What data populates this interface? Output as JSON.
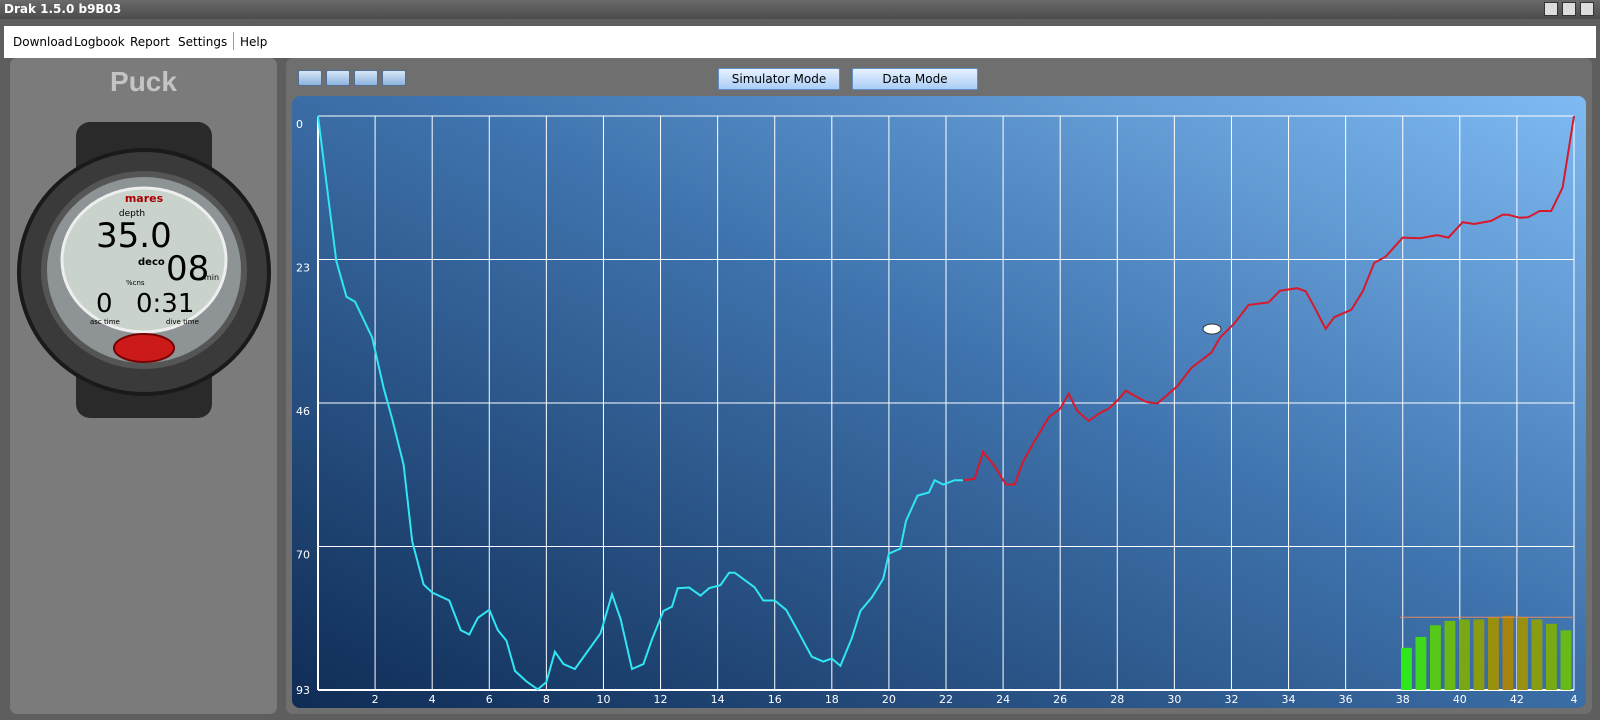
{
  "window": {
    "title": "Drak 1.5.0 b9B03"
  },
  "menu": [
    "Download",
    "Logbook",
    "Report",
    "Settings",
    "Help"
  ],
  "device": {
    "name": "Puck",
    "display": {
      "brand": "mares",
      "depth_label": "depth",
      "depth": "35.0",
      "deco_label": "deco",
      "deco": "08",
      "deco_unit": "min",
      "cns_label": "%cns",
      "asc_time": "0",
      "dive_time": "0:31",
      "asc_time_label": "asc time",
      "dive_time_label": "dive time"
    }
  },
  "toolbar": {
    "modes": [
      "Simulator Mode",
      "Data Mode"
    ]
  },
  "chart_data": [
    {
      "type": "line",
      "grid": true,
      "y_inverted": true,
      "xlim": [
        0,
        44
      ],
      "xticks": [
        2,
        4,
        6,
        8,
        10,
        12,
        14,
        16,
        18,
        20,
        22,
        24,
        26,
        28,
        30,
        32,
        34,
        36,
        38,
        40,
        42,
        {
          "value": 44,
          "label": "4"
        }
      ],
      "ylim": [
        0,
        93
      ],
      "yticks": [
        0,
        {
          "value": 23.25,
          "label": "23"
        },
        {
          "value": 46.5,
          "label": "46"
        },
        {
          "value": 69.75,
          "label": "70"
        },
        93
      ],
      "series": [
        {
          "color": "#2fe6f2",
          "x": [
            0,
            0.64,
            1.0,
            1.3,
            1.9,
            2.3,
            2.6,
            3.0,
            3.3,
            3.7,
            4.0,
            4.6,
            5.0,
            5.3,
            5.6,
            6.0,
            6.3,
            6.6,
            6.9,
            7.3,
            7.7,
            8.0,
            8.3,
            8.6,
            9.0,
            9.9,
            10.3,
            10.6,
            11.0,
            11.4,
            11.7,
            12.1,
            12.4,
            12.6,
            13.0,
            13.4,
            13.7,
            14.1,
            14.4,
            14.6,
            15.3,
            15.6,
            16.0,
            16.4,
            16.7,
            17.3,
            17.7,
            18.0,
            18.3,
            18.7,
            19.0,
            19.4,
            19.8,
            20.0,
            20.4,
            20.6,
            21.0,
            21.4,
            21.6,
            21.9,
            22.3,
            22.6
          ],
          "values": [
            0,
            23.5,
            29.3,
            30.1,
            35.9,
            44.1,
            49.1,
            56.5,
            68.9,
            75.9,
            77.2,
            78.5,
            83.3,
            84.0,
            81.3,
            80.0,
            83.3,
            85.0,
            89.9,
            91.6,
            92.9,
            91.7,
            86.8,
            88.8,
            89.6,
            83.8,
            77.5,
            81.5,
            89.6,
            88.8,
            84.8,
            80.2,
            79.5,
            76.5,
            76.4,
            77.7,
            76.5,
            76.0,
            74.0,
            74.0,
            76.4,
            78.5,
            78.5,
            80.0,
            82.5,
            87.6,
            88.4,
            87.9,
            89.1,
            84.6,
            80.2,
            78.0,
            75.0,
            70.9,
            70.1,
            65.6,
            61.5,
            61.0,
            59.0,
            59.7,
            59.0,
            59.0
          ]
        },
        {
          "color": "#d8182c",
          "x": [
            22.6,
            23.0,
            23.3,
            23.7,
            24.1,
            24.4,
            24.7,
            25.1,
            25.6,
            26.0,
            26.3,
            26.6,
            27.0,
            27.4,
            27.7,
            28.0,
            28.3,
            28.6,
            29.0,
            29.4,
            30.1,
            30.6,
            31.3,
            31.6,
            32.1,
            32.6,
            33.3,
            33.7,
            34.3,
            34.6,
            34.9,
            35.3,
            35.6,
            36.2,
            36.6,
            37.0,
            37.4,
            38.0,
            38.6,
            39.2,
            39.6,
            40.1,
            40.5,
            41.1,
            41.5,
            41.7,
            42.1,
            42.4,
            42.8,
            43.2,
            43.6,
            44.0
          ],
          "values": [
            59.0,
            58.8,
            54.4,
            56.7,
            59.7,
            59.7,
            56.0,
            52.7,
            48.8,
            47.4,
            45.0,
            47.8,
            49.4,
            48.1,
            47.4,
            46.1,
            44.5,
            45.3,
            46.3,
            46.6,
            43.8,
            40.8,
            38.3,
            35.9,
            33.6,
            30.6,
            30.2,
            28.3,
            27.9,
            28.4,
            30.9,
            34.5,
            32.6,
            31.4,
            28.4,
            23.8,
            22.8,
            19.7,
            19.8,
            19.3,
            19.7,
            17.2,
            17.5,
            17.0,
            16.0,
            16.0,
            16.5,
            16.4,
            15.4,
            15.4,
            11.6,
            0
          ]
        }
      ]
    },
    {
      "type": "bar",
      "ylim": [
        0,
        110
      ],
      "limit": 100,
      "values": [
        58,
        73,
        89,
        95,
        97,
        97,
        100,
        102,
        100,
        97,
        91,
        82
      ],
      "colors": [
        "#2ee81c",
        "#3fd81a",
        "#55c818",
        "#68b816",
        "#7aa814",
        "#8a9c12",
        "#9a9010",
        "#a8840e",
        "#9a900f",
        "#8a9c11",
        "#78aa14",
        "#66bb17"
      ]
    }
  ]
}
